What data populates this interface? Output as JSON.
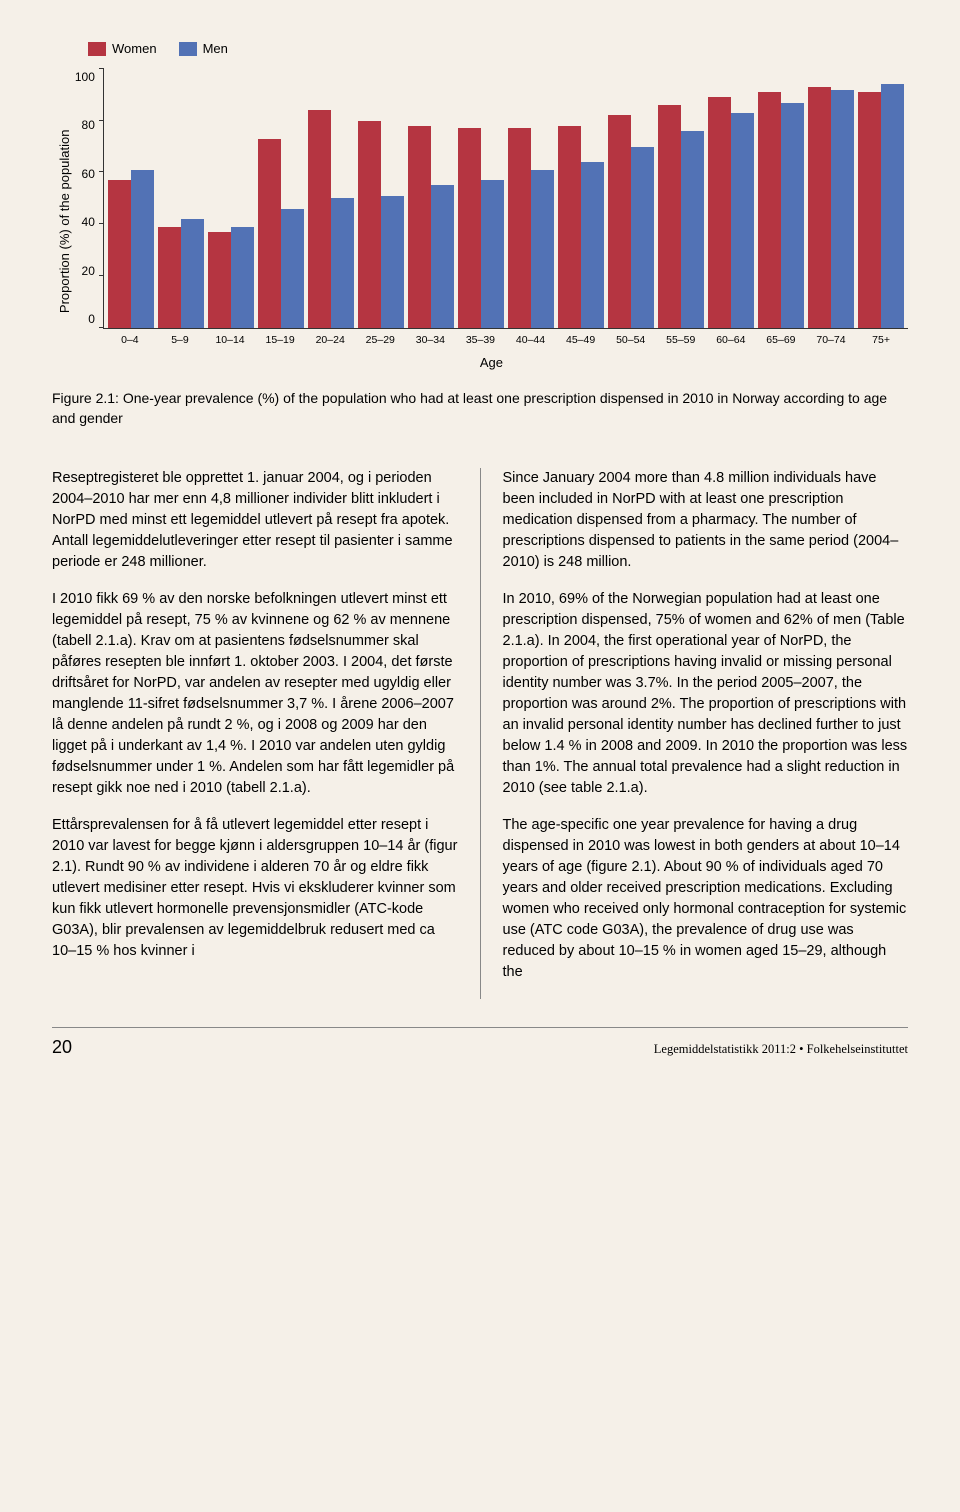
{
  "legend": {
    "women": "Women",
    "men": "Men"
  },
  "chart": {
    "type": "grouped-bar",
    "ylabel": "Proportion (%) of the population",
    "xlabel": "Age",
    "ymax": 100,
    "yticks": [
      100,
      80,
      60,
      40,
      20,
      0
    ],
    "colors": {
      "women": "#b53541",
      "men": "#5272b5",
      "bg": "#f5f0e8"
    },
    "categories": [
      "0–4",
      "5–9",
      "10–14",
      "15–19",
      "20–24",
      "25–29",
      "30–34",
      "35–39",
      "40–44",
      "45–49",
      "50–54",
      "55–59",
      "60–64",
      "65–69",
      "70–74",
      "75+"
    ],
    "women": [
      57,
      39,
      37,
      73,
      84,
      80,
      78,
      77,
      77,
      78,
      82,
      86,
      89,
      91,
      93,
      91
    ],
    "men": [
      61,
      42,
      39,
      46,
      50,
      51,
      55,
      57,
      61,
      64,
      70,
      76,
      83,
      87,
      92,
      94
    ]
  },
  "caption": "Figure 2.1: One-year prevalence (%) of the population who had at least one prescription dispensed in 2010 in Norway according to age and gender",
  "left": {
    "p1": "Reseptregisteret ble opprettet 1. januar 2004, og i perioden 2004–2010 har mer enn 4,8 millioner individer blitt inkludert i NorPD med minst ett legemiddel utlevert på resept fra apotek. Antall legemiddelutleveringer etter resept til pasienter i samme periode er 248 millioner.",
    "p2": "I 2010 fikk 69 % av den norske befolkningen utlevert minst ett legemiddel på resept, 75 % av kvinnene og 62 % av mennene (tabell 2.1.a). Krav om at pasientens fødselsnummer skal påføres resepten ble innført 1. oktober 2003. I 2004, det første driftsåret for NorPD, var andelen av resepter med ugyldig eller manglende 11-sifret fødselsnummer 3,7 %. I årene 2006–2007 lå denne andelen på rundt 2 %, og i 2008 og 2009 har den ligget på i underkant av 1,4 %. I 2010 var andelen uten gyldig fødselsnummer under 1 %. Andelen som har fått legemidler på resept gikk noe ned i 2010 (tabell 2.1.a).",
    "p3": "Ettårsprevalensen for å få utlevert legemiddel etter resept i 2010 var lavest for begge kjønn i aldersgruppen 10–14 år (figur 2.1). Rundt 90 % av individene i alderen 70 år og eldre fikk utlevert medisiner etter resept. Hvis vi ekskluderer kvinner som kun fikk utlevert hormonelle prevensjonsmidler (ATC-kode G03A), blir prevalensen av legemiddelbruk redusert med ca 10–15 % hos kvinner i"
  },
  "right": {
    "p1": "Since January 2004 more than 4.8 million individuals have been included in NorPD with at least one prescription medication dispensed from a pharmacy. The number of prescriptions dispensed to patients in the same period (2004–2010) is 248 million.",
    "p2": "In 2010, 69% of the Norwegian population had at least one prescription dispensed, 75% of women and 62% of men (Table 2.1.a). In 2004, the first operational year of NorPD, the proportion of prescriptions having invalid or missing personal identity number was 3.7%. In the period 2005–2007, the proportion was around 2%. The proportion of prescriptions with an invalid personal identity number has declined further to just below 1.4 % in 2008 and 2009. In 2010 the proportion was less than 1%. The annual total prevalence had a slight reduction in 2010 (see table 2.1.a).",
    "p3": "The age-specific one year prevalence for having a drug dispensed in 2010 was lowest in both genders at about 10–14 years of age (figure 2.1). About 90 % of individuals aged 70 years and older received prescription medications. Excluding women who received only hormonal contraception for systemic use (ATC code G03A), the prevalence of drug use was reduced by about 10–15 % in women aged 15–29, although the"
  },
  "footer": {
    "page": "20",
    "pub": "Legemiddelstatistikk 2011:2 • Folkehelseinstituttet"
  }
}
